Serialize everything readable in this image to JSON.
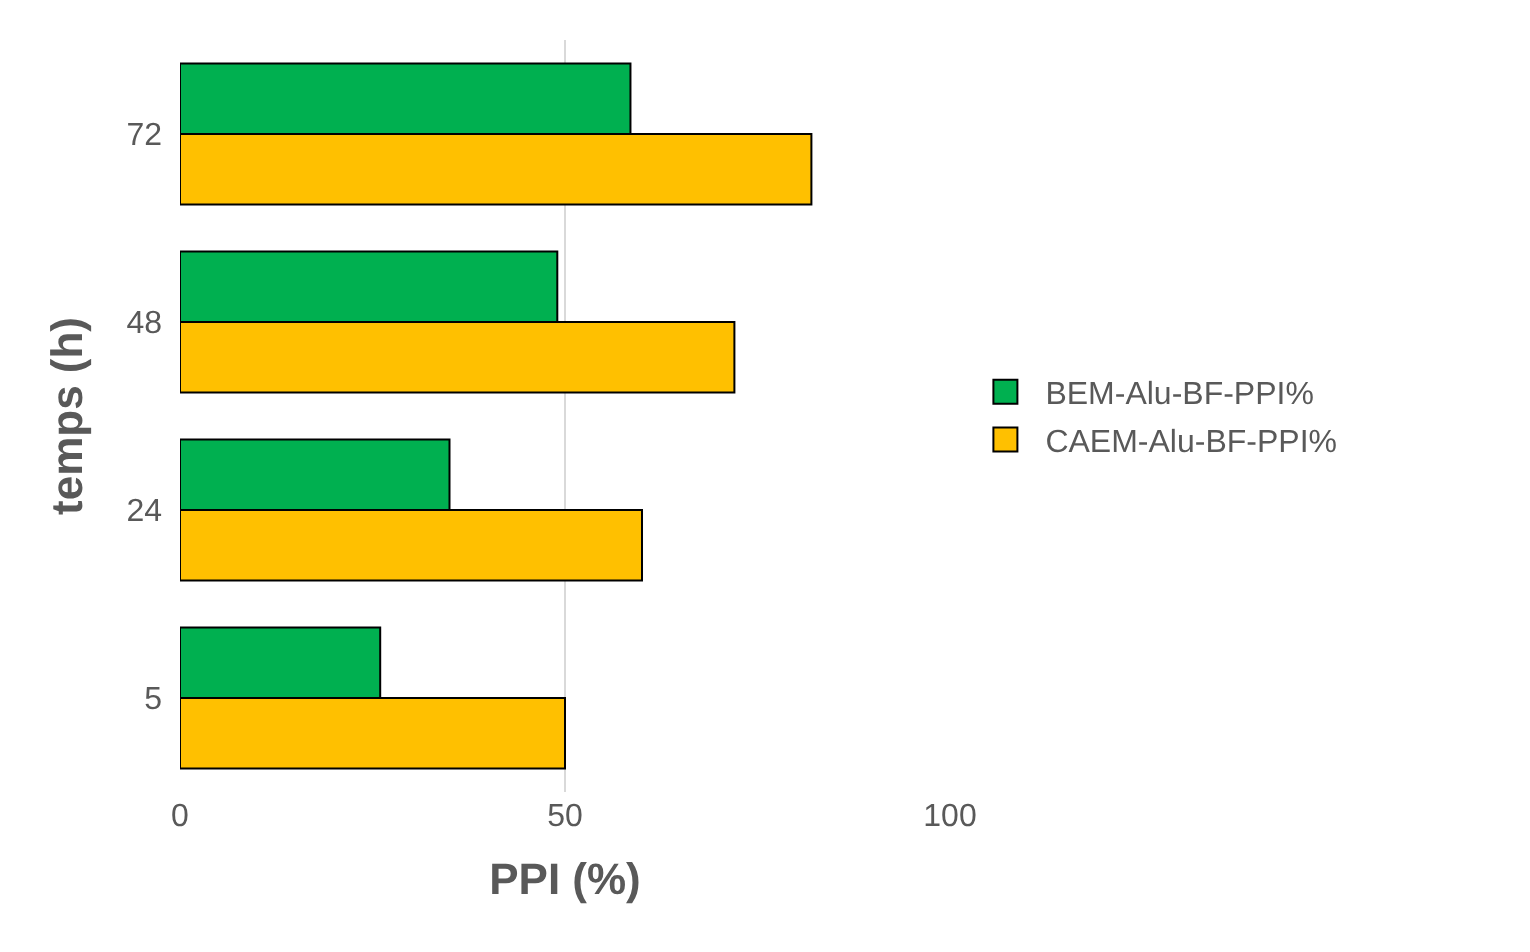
{
  "chart_data": {
    "type": "bar",
    "orientation": "horizontal",
    "xlabel": "PPI (%)",
    "ylabel": "temps (h)",
    "categories": [
      "72",
      "48",
      "24",
      "5"
    ],
    "series": [
      {
        "name": "BEM-Alu-BF-PPI%",
        "color": "#00b050",
        "values": [
          58.5,
          49,
          35,
          26
        ]
      },
      {
        "name": "CAEM-Alu-BF-PPI%",
        "color": "#ffc000",
        "values": [
          82,
          72,
          60,
          50
        ]
      }
    ],
    "xlim": [
      0,
      100
    ],
    "xticks": [
      0,
      50,
      100
    ],
    "grid": "x",
    "legend": "right"
  }
}
